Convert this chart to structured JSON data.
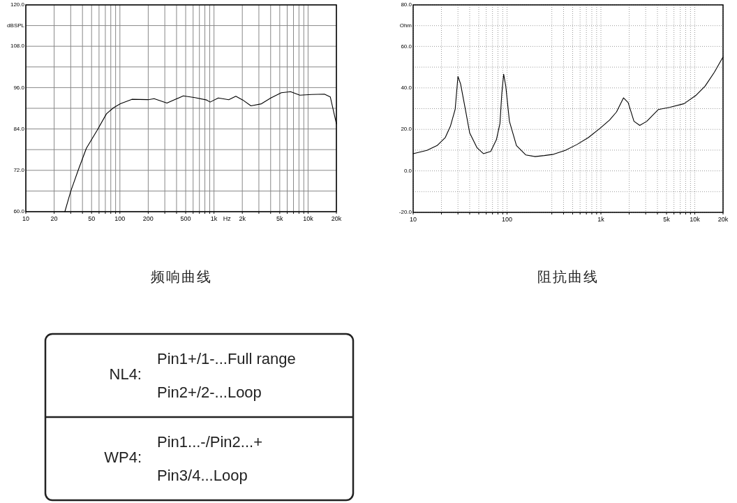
{
  "chart_data": [
    {
      "type": "line",
      "title": "频响曲线",
      "ylabel": "dBSPL",
      "xlabel": "Hz",
      "log": "x",
      "grid": true,
      "color": "#000000",
      "x": [
        26,
        30,
        36,
        44,
        57,
        72,
        85,
        101,
        134,
        200,
        231,
        316,
        472,
        628,
        836,
        910,
        1111,
        1435,
        1706,
        2024,
        2471,
        3193,
        4015,
        5190,
        6518,
        8186,
        10890,
        14920,
        17220,
        20000
      ],
      "values": [
        60,
        65.9,
        72,
        78.4,
        83.5,
        88.4,
        90.1,
        91.3,
        92.6,
        92.5,
        92.8,
        91.5,
        93.6,
        93.1,
        92.4,
        91.8,
        93,
        92.5,
        93.5,
        92.4,
        90.7,
        91.3,
        93,
        94.5,
        94.8,
        93.8,
        94,
        94.1,
        93.3,
        85.5
      ],
      "xlim": [
        10,
        20000
      ],
      "ylim": [
        60,
        120
      ],
      "xticks": [
        10,
        20,
        {
          "value": 30,
          "label": null
        },
        {
          "value": 40,
          "label": null
        },
        50,
        {
          "value": 60,
          "label": null
        },
        {
          "value": 70,
          "label": null
        },
        {
          "value": 80,
          "label": null
        },
        {
          "value": 90,
          "label": null
        },
        100,
        200,
        {
          "value": 300,
          "label": null
        },
        {
          "value": 400,
          "label": null
        },
        500,
        {
          "value": 600,
          "label": null
        },
        {
          "value": 700,
          "label": null
        },
        {
          "value": 800,
          "label": null
        },
        {
          "value": 900,
          "label": null
        },
        {
          "value": 1000,
          "label": "1k"
        },
        {
          "value": 2000,
          "label": "2k"
        },
        {
          "value": 3000,
          "label": null
        },
        {
          "value": 4000,
          "label": null
        },
        {
          "value": 5000,
          "label": "5k"
        },
        {
          "value": 6000,
          "label": null
        },
        {
          "value": 7000,
          "label": null
        },
        {
          "value": 8000,
          "label": null
        },
        {
          "value": 9000,
          "label": null
        },
        {
          "value": 10000,
          "label": "10k"
        },
        {
          "value": 20000,
          "label": "20k"
        }
      ],
      "yticks": [
        {
          "value": 60,
          "label": "60.0"
        },
        {
          "value": 66,
          "label": null
        },
        {
          "value": 72,
          "label": "72.0"
        },
        {
          "value": 78,
          "label": null
        },
        {
          "value": 84,
          "label": "84.0"
        },
        {
          "value": 90,
          "label": null
        },
        {
          "value": 96,
          "label": "96.0"
        },
        {
          "value": 102,
          "label": null
        },
        {
          "value": 108,
          "label": "108.0"
        },
        {
          "value": 114,
          "label": null
        },
        {
          "value": 120,
          "label": "120.0"
        }
      ]
    },
    {
      "type": "line",
      "title": "阻抗曲线",
      "ylabel": "Ohm",
      "log": "x",
      "grid": true,
      "color": "#000000",
      "x": [
        10,
        14,
        18,
        22,
        25,
        28,
        30,
        32,
        36,
        40,
        48,
        56,
        67,
        77,
        84,
        88,
        92,
        97,
        106,
        126,
        158,
        199,
        250,
        313,
        417,
        555,
        738,
        984,
        1236,
        1466,
        1741,
        1951,
        2250,
        2594,
        3080,
        4100,
        5460,
        7690,
        10230,
        12860,
        16150,
        19950
      ],
      "values": [
        8.3,
        9.9,
        12.2,
        16.1,
        21.7,
        29.6,
        45.5,
        41.9,
        29.6,
        18.3,
        11.1,
        8.3,
        9.4,
        15,
        22.8,
        37.4,
        46.6,
        40.8,
        23.9,
        12.2,
        7.7,
        6.9,
        7.4,
        8,
        9.9,
        12.7,
        16.1,
        20.6,
        24.5,
        28.4,
        35.2,
        32.9,
        23.9,
        21.9,
        23.9,
        29.6,
        30.7,
        32.4,
        36.3,
        40.8,
        47.5,
        54.8
      ],
      "xlim": [
        10,
        20000
      ],
      "ylim": [
        -20,
        80
      ],
      "xticks": [
        10,
        {
          "value": 20,
          "label": null
        },
        {
          "value": 30,
          "label": null
        },
        {
          "value": 40,
          "label": null
        },
        {
          "value": 50,
          "label": null
        },
        {
          "value": 60,
          "label": null
        },
        {
          "value": 70,
          "label": null
        },
        {
          "value": 80,
          "label": null
        },
        {
          "value": 90,
          "label": null
        },
        100,
        {
          "value": 300,
          "label": null
        },
        {
          "value": 400,
          "label": null
        },
        {
          "value": 500,
          "label": null
        },
        {
          "value": 600,
          "label": null
        },
        {
          "value": 700,
          "label": null
        },
        {
          "value": 800,
          "label": null
        },
        {
          "value": 900,
          "label": null
        },
        {
          "value": 1000,
          "label": "1k"
        },
        {
          "value": 2000,
          "label": null
        },
        {
          "value": 3000,
          "label": null
        },
        {
          "value": 4000,
          "label": null
        },
        {
          "value": 5000,
          "label": "5k"
        },
        {
          "value": 6000,
          "label": null
        },
        {
          "value": 7000,
          "label": null
        },
        {
          "value": 8000,
          "label": null
        },
        {
          "value": 9000,
          "label": null
        },
        {
          "value": 10000,
          "label": "10k"
        },
        {
          "value": 20000,
          "label": "20k"
        }
      ],
      "yticks": [
        {
          "value": -20,
          "label": "-20.0"
        },
        {
          "value": -10,
          "label": null
        },
        {
          "value": 0,
          "label": "0.0"
        },
        {
          "value": 10,
          "label": null
        },
        {
          "value": 20,
          "label": "20.0"
        },
        {
          "value": 30,
          "label": null
        },
        {
          "value": 40,
          "label": "40.0"
        },
        {
          "value": 50,
          "label": null
        },
        {
          "value": 60,
          "label": "60.0"
        },
        {
          "value": 70,
          "label": null
        },
        {
          "value": 80,
          "label": "80.0"
        }
      ]
    },
    {
      "type": "other",
      "annotations": [
        "NL4:",
        "Pin1+/1-...Full range",
        "Pin2+/2-...Loop",
        "WP4:",
        "Pin1...-/Pin2...+",
        "Pin3/4...Loop"
      ]
    }
  ]
}
